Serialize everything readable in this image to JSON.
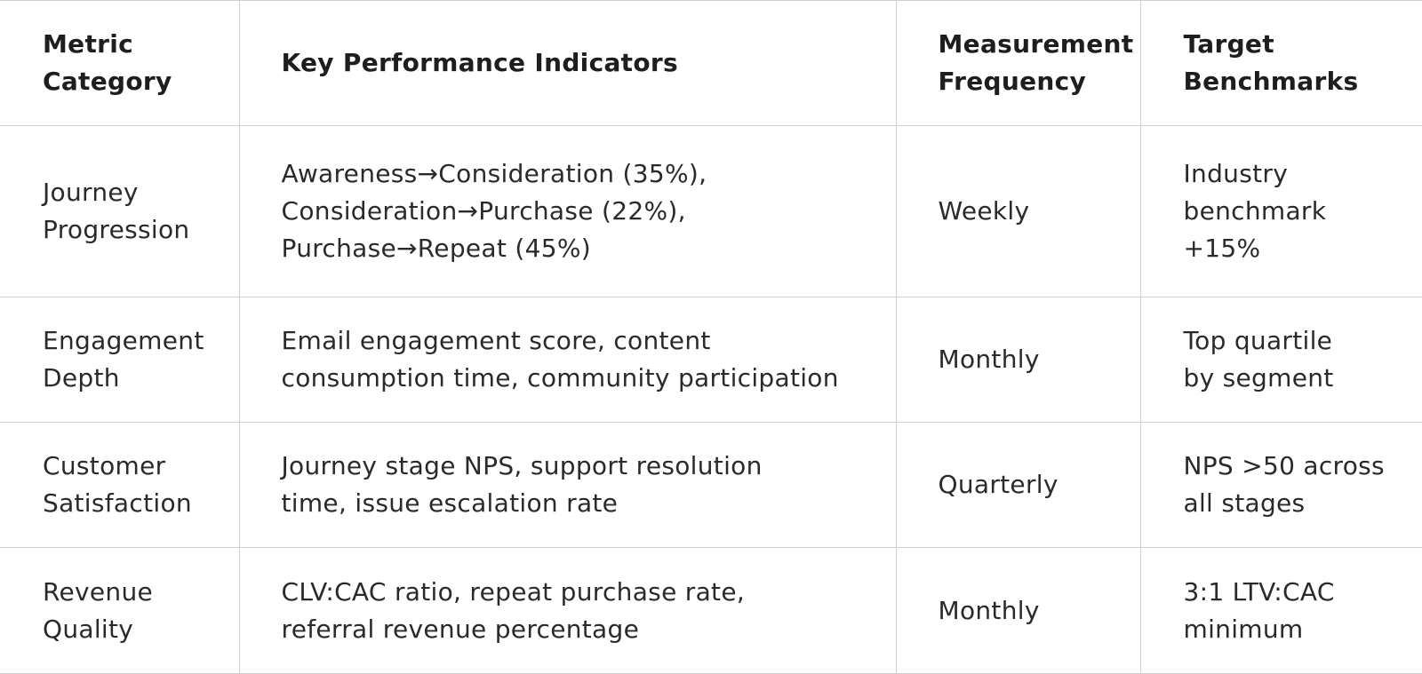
{
  "table": {
    "headers": {
      "metric_category": [
        "Metric",
        "Category"
      ],
      "kpis": [
        "Key Performance Indicators"
      ],
      "frequency": [
        "Measurement",
        "Frequency"
      ],
      "benchmarks": [
        "Target",
        "Benchmarks"
      ]
    },
    "rows": [
      {
        "category": [
          "Journey",
          "Progression"
        ],
        "kpis": [
          "Awareness→Consideration (35%),",
          "Consideration→Purchase (22%),",
          "Purchase→Repeat (45%)"
        ],
        "frequency": "Weekly",
        "benchmark": [
          "Industry",
          "benchmark",
          "+15%"
        ]
      },
      {
        "category": [
          "Engagement",
          "Depth"
        ],
        "kpis": [
          "Email engagement score, content",
          "consumption time, community participation"
        ],
        "frequency": "Monthly",
        "benchmark": [
          "Top quartile",
          "by segment"
        ]
      },
      {
        "category": [
          "Customer",
          "Satisfaction"
        ],
        "kpis": [
          "Journey stage NPS, support resolution",
          "time, issue escalation rate"
        ],
        "frequency": "Quarterly",
        "benchmark": [
          "NPS >50 across",
          "all stages"
        ]
      },
      {
        "category": [
          "Revenue",
          "Quality"
        ],
        "kpis": [
          "CLV:CAC ratio, repeat purchase rate,",
          "referral revenue percentage"
        ],
        "frequency": "Monthly",
        "benchmark": [
          "3:1 LTV:CAC",
          "minimum"
        ]
      }
    ]
  }
}
